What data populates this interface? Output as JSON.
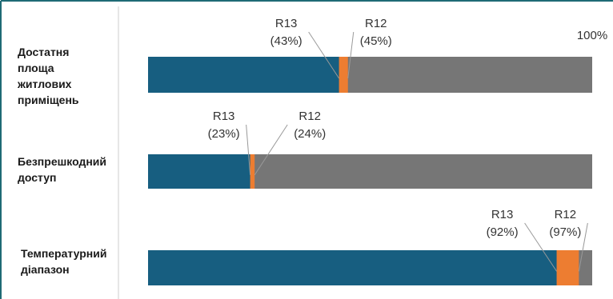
{
  "chart_data": {
    "type": "bar",
    "categories": [
      "Достатня площа житлових приміщень",
      "Безпрешкодний доступ",
      "Температурний діапазон"
    ],
    "series": [
      {
        "name": "R13",
        "color": "#175e80",
        "values": [
          43,
          23,
          92
        ],
        "value_labels": [
          "(43%)",
          "(23%)",
          "(92%)"
        ]
      },
      {
        "name": "R12",
        "color": "#ed7d31",
        "values": [
          45,
          24,
          97
        ],
        "value_labels": [
          "(45%)",
          "(24%)",
          "(97%)"
        ]
      }
    ],
    "rest_color": "#767676",
    "xlim": [
      0,
      100
    ],
    "xticks": [
      {
        "value": 100,
        "label": "100%"
      }
    ]
  }
}
